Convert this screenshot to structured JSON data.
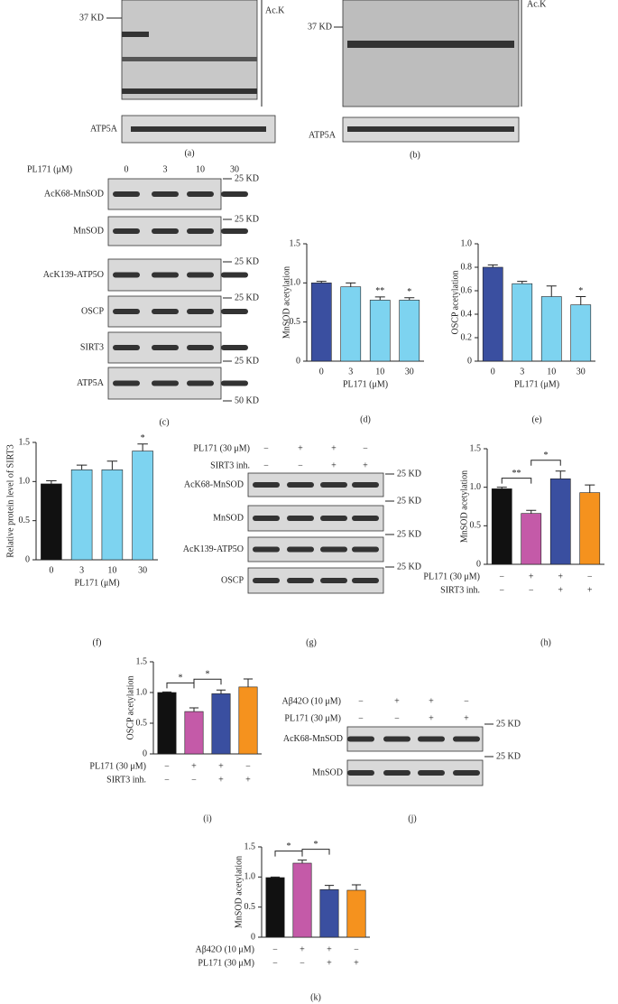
{
  "blots": [
    {
      "label": "(a)",
      "marker": "37 KD",
      "antibody": "Ac.K",
      "loading": "ATP5A"
    },
    {
      "label": "(b)",
      "marker": "37 KD",
      "antibody": "Ac.K",
      "loading": "ATP5A"
    },
    {
      "label": "(c)",
      "treatment": "PL171 (μM)",
      "lanes": [
        "0",
        "3",
        "10",
        "30"
      ],
      "rows": [
        "AcK68-MnSOD",
        "MnSOD",
        "AcK139-ATP5O",
        "OSCP",
        "SIRT3",
        "ATP5A"
      ],
      "markers": [
        "25 KD",
        "25 KD",
        "25 KD",
        "25 KD",
        "25 KD",
        "50 KD"
      ]
    },
    {
      "label": "(g)",
      "conditions": [
        {
          "name": "PL171 (30 μM)",
          "signs": [
            "−",
            "+",
            "+",
            "−"
          ]
        },
        {
          "name": "SIRT3 inh.",
          "signs": [
            "−",
            "−",
            "+",
            "+"
          ]
        }
      ],
      "rows": [
        "AcK68-MnSOD",
        "MnSOD",
        "AcK139-ATP5O",
        "OSCP"
      ],
      "markers": [
        "25 KD",
        "25 KD",
        "25 KD",
        "25 KD"
      ]
    },
    {
      "label": "(j)",
      "conditions": [
        {
          "name": "Aβ42O (10 μM)",
          "signs": [
            "−",
            "+",
            "+",
            "−"
          ]
        },
        {
          "name": "PL171 (30 μM)",
          "signs": [
            "−",
            "−",
            "+",
            "+"
          ]
        }
      ],
      "rows": [
        "AcK68-MnSOD",
        "MnSOD"
      ],
      "markers": [
        "25 KD",
        "25 KD"
      ]
    }
  ],
  "chart_data": [
    {
      "type": "bar",
      "label": "(d)",
      "ylabel": "MnSOD acetylation",
      "xlabel": "PL171 (μM)",
      "categories": [
        "0",
        "3",
        "10",
        "30"
      ],
      "values": [
        1.0,
        0.95,
        0.78,
        0.78
      ],
      "errors": [
        0.02,
        0.05,
        0.04,
        0.03
      ],
      "significance": [
        null,
        null,
        "**",
        "*"
      ],
      "colors": [
        "#3a4fa0",
        "#7dd3f0",
        "#7dd3f0",
        "#7dd3f0"
      ],
      "ylim": [
        0,
        1.5
      ],
      "yticks": [
        0,
        0.5,
        {
          "value": 1,
          "label": "1.0"
        },
        1.5
      ]
    },
    {
      "type": "bar",
      "label": "(e)",
      "ylabel": "OSCP acetylation",
      "xlabel": "PL171 (μM)",
      "categories": [
        "0",
        "3",
        "10",
        "30"
      ],
      "values": [
        0.8,
        0.66,
        0.55,
        0.48
      ],
      "errors": [
        0.02,
        0.02,
        0.09,
        0.07
      ],
      "significance": [
        null,
        null,
        null,
        "*"
      ],
      "colors": [
        "#3a4fa0",
        "#7dd3f0",
        "#7dd3f0",
        "#7dd3f0"
      ],
      "ylim": [
        0,
        1.0
      ],
      "yticks": [
        0,
        0.2,
        0.4,
        0.6,
        0.8,
        {
          "value": 1,
          "label": "1.0"
        }
      ]
    },
    {
      "type": "bar",
      "label": "(f)",
      "ylabel": "Relative protein level of  SIRT3",
      "xlabel": "PL171 (μM)",
      "categories": [
        "0",
        "3",
        "10",
        "30"
      ],
      "values": [
        0.97,
        1.15,
        1.15,
        1.39
      ],
      "errors": [
        0.04,
        0.06,
        0.11,
        0.09
      ],
      "significance": [
        null,
        null,
        null,
        "*"
      ],
      "colors": [
        "#111111",
        "#7dd3f0",
        "#7dd3f0",
        "#7dd3f0"
      ],
      "ylim": [
        0,
        1.5
      ],
      "yticks": [
        0,
        0.5,
        {
          "value": 1,
          "label": "1.0"
        },
        1.5
      ]
    },
    {
      "type": "bar",
      "label": "(h)",
      "ylabel": "MnSOD acetylation",
      "conditions": [
        {
          "name": "PL171 (30 μM)",
          "signs": [
            "−",
            "+",
            "+",
            "−"
          ]
        },
        {
          "name": "SIRT3 inh.",
          "signs": [
            "−",
            "−",
            "+",
            "+"
          ]
        }
      ],
      "values": [
        0.98,
        0.66,
        1.11,
        0.93
      ],
      "errors": [
        0.02,
        0.04,
        0.1,
        0.1
      ],
      "brackets": [
        {
          "text": "**",
          "bars": [
            0,
            1
          ]
        },
        {
          "text": "*",
          "bars": [
            1,
            2
          ]
        }
      ],
      "colors": [
        "#111111",
        "#c45aa8",
        "#3a4fa0",
        "#f5921e"
      ],
      "ylim": [
        0,
        1.5
      ],
      "yticks": [
        0,
        0.5,
        {
          "value": 1,
          "label": "1.0"
        },
        1.5
      ]
    },
    {
      "type": "bar",
      "label": "(i)",
      "ylabel": "OSCP acetylation",
      "conditions": [
        {
          "name": "PL171 (30 μM)",
          "signs": [
            "−",
            "+",
            "+",
            "−"
          ]
        },
        {
          "name": "SIRT3 inh.",
          "signs": [
            "−",
            "−",
            "+",
            "+"
          ]
        }
      ],
      "values": [
        1.0,
        0.69,
        0.98,
        1.09
      ],
      "errors": [
        0.01,
        0.06,
        0.06,
        0.13
      ],
      "brackets": [
        {
          "text": "*",
          "bars": [
            0,
            1
          ]
        },
        {
          "text": "*",
          "bars": [
            1,
            2
          ]
        }
      ],
      "colors": [
        "#111111",
        "#c45aa8",
        "#3a4fa0",
        "#f5921e"
      ],
      "ylim": [
        0,
        1.5
      ],
      "yticks": [
        0,
        0.5,
        {
          "value": 1,
          "label": "1.0"
        },
        1.5
      ]
    },
    {
      "type": "bar",
      "label": "(k)",
      "ylabel": "MnSOD acetylation",
      "conditions": [
        {
          "name": "Aβ42O (10 μM)",
          "signs": [
            "−",
            "+",
            "+",
            "−"
          ]
        },
        {
          "name": "PL171 (30 μM)",
          "signs": [
            "−",
            "−",
            "+",
            "+"
          ]
        }
      ],
      "values": [
        0.99,
        1.23,
        0.79,
        0.78
      ],
      "errors": [
        0.01,
        0.05,
        0.07,
        0.09
      ],
      "brackets": [
        {
          "text": "*",
          "bars": [
            0,
            1
          ]
        },
        {
          "text": "*",
          "bars": [
            1,
            2
          ]
        }
      ],
      "colors": [
        "#111111",
        "#c45aa8",
        "#3a4fa0",
        "#f5921e"
      ],
      "ylim": [
        0,
        1.5
      ],
      "yticks": [
        0,
        0.5,
        {
          "value": 1,
          "label": "1.0"
        },
        1.5
      ]
    }
  ]
}
